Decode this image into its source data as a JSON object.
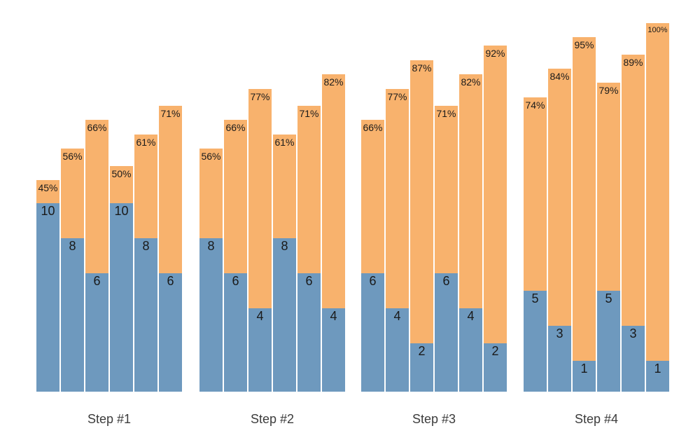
{
  "chart_data": {
    "type": "bar",
    "subtype": "grouped-stacked",
    "title": "",
    "xlabel": "",
    "ylabel": "",
    "grid": false,
    "axes_visible": false,
    "legend_position": "none",
    "background": "#ffffff",
    "colors": {
      "bottom_segment": "#6E99BE",
      "top_segment": "#F8B26D",
      "bar_label_text": "#1a1a1a",
      "category_label_text": "#3c3c3c"
    },
    "categories": [
      "Step #1",
      "Step #2",
      "Step #3",
      "Step #4"
    ],
    "bars_per_group": 6,
    "groups": [
      {
        "label": "Step #1",
        "bars": [
          {
            "value": 10,
            "pct": 45,
            "value_label": "10",
            "pct_label": "45%"
          },
          {
            "value": 8,
            "pct": 56,
            "value_label": "8",
            "pct_label": "56%"
          },
          {
            "value": 6,
            "pct": 66,
            "value_label": "6",
            "pct_label": "66%"
          },
          {
            "value": 10,
            "pct": 50,
            "value_label": "10",
            "pct_label": "50%"
          },
          {
            "value": 8,
            "pct": 61,
            "value_label": "8",
            "pct_label": "61%"
          },
          {
            "value": 6,
            "pct": 71,
            "value_label": "6",
            "pct_label": "71%"
          }
        ]
      },
      {
        "label": "Step #2",
        "bars": [
          {
            "value": 8,
            "pct": 56,
            "value_label": "8",
            "pct_label": "56%"
          },
          {
            "value": 6,
            "pct": 66,
            "value_label": "6",
            "pct_label": "66%"
          },
          {
            "value": 4,
            "pct": 77,
            "value_label": "4",
            "pct_label": "77%"
          },
          {
            "value": 8,
            "pct": 61,
            "value_label": "8",
            "pct_label": "61%"
          },
          {
            "value": 6,
            "pct": 71,
            "value_label": "6",
            "pct_label": "71%"
          },
          {
            "value": 4,
            "pct": 82,
            "value_label": "4",
            "pct_label": "82%"
          }
        ]
      },
      {
        "label": "Step #3",
        "bars": [
          {
            "value": 6,
            "pct": 66,
            "value_label": "6",
            "pct_label": "66%"
          },
          {
            "value": 4,
            "pct": 77,
            "value_label": "4",
            "pct_label": "77%"
          },
          {
            "value": 2,
            "pct": 87,
            "value_label": "2",
            "pct_label": "87%"
          },
          {
            "value": 6,
            "pct": 71,
            "value_label": "6",
            "pct_label": "71%"
          },
          {
            "value": 4,
            "pct": 82,
            "value_label": "4",
            "pct_label": "82%"
          },
          {
            "value": 2,
            "pct": 92,
            "value_label": "2",
            "pct_label": "92%"
          }
        ]
      },
      {
        "label": "Step #4",
        "bars": [
          {
            "value": 5,
            "pct": 74,
            "value_label": "5",
            "pct_label": "74%"
          },
          {
            "value": 3,
            "pct": 84,
            "value_label": "3",
            "pct_label": "84%"
          },
          {
            "value": 1,
            "pct": 95,
            "value_label": "1",
            "pct_label": "95%"
          },
          {
            "value": 5,
            "pct": 79,
            "value_label": "5",
            "pct_label": "79%"
          },
          {
            "value": 3,
            "pct": 89,
            "value_label": "3",
            "pct_label": "89%"
          },
          {
            "value": 1,
            "pct": 100,
            "value_label": "1",
            "pct_label": "100%"
          }
        ]
      }
    ]
  }
}
